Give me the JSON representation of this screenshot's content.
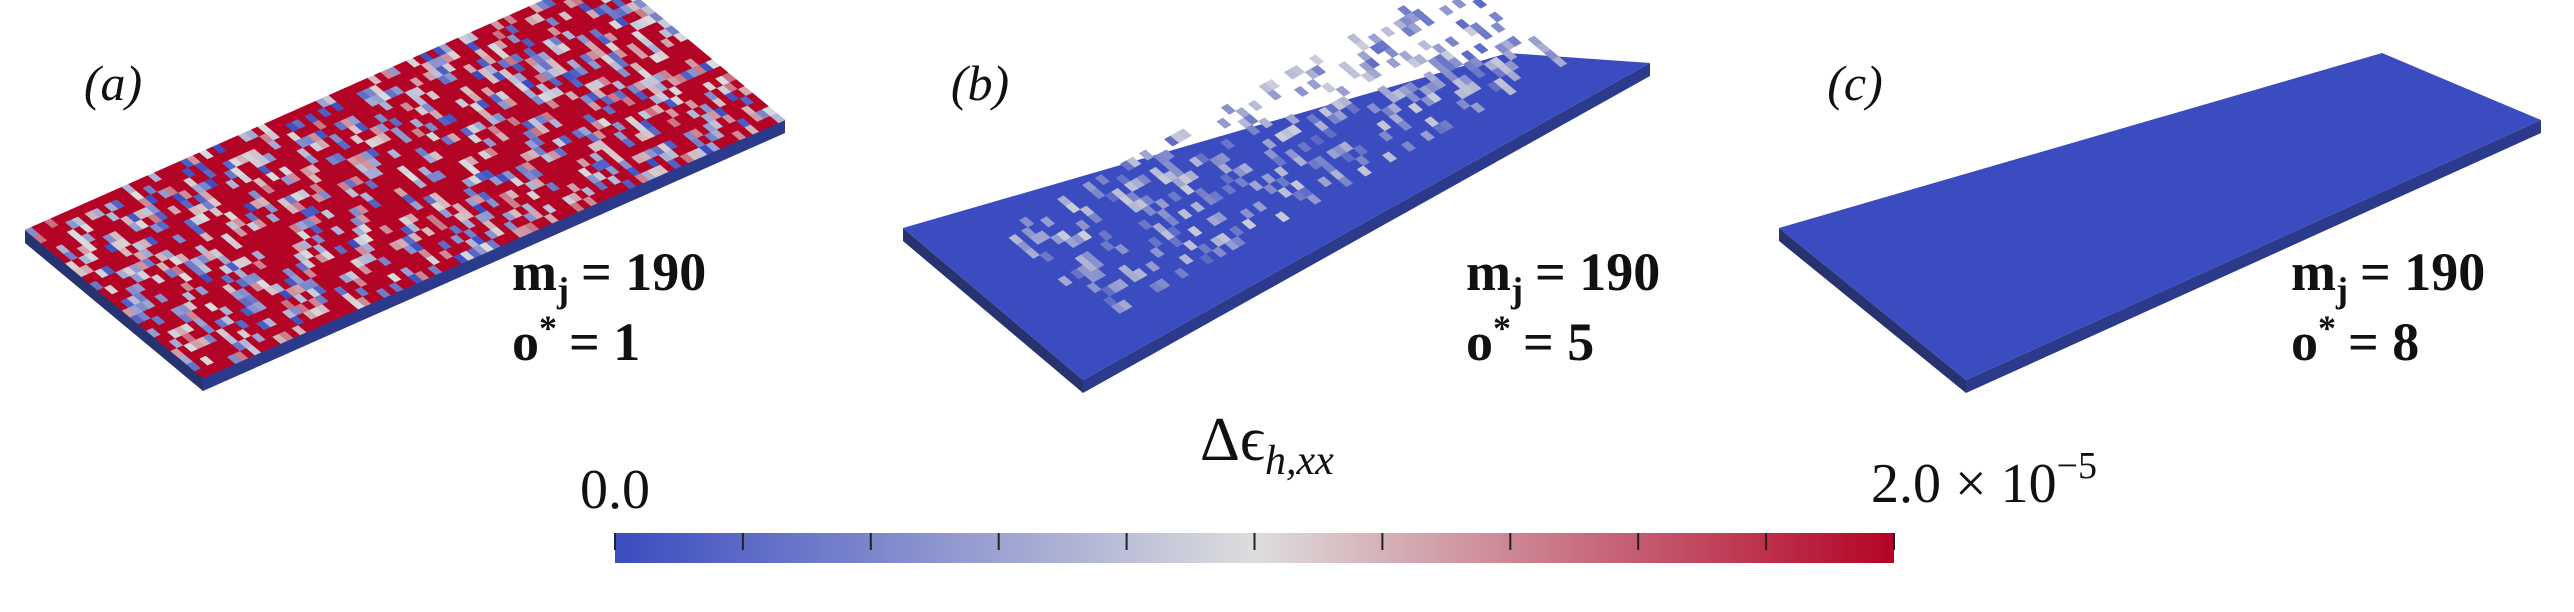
{
  "panels": [
    {
      "label": "(a)",
      "params": [
        {
          "symbol": "m",
          "subscript": "j",
          "rest": "= 190"
        },
        {
          "symbol": "o",
          "superscript": "*",
          "rest": "= 1"
        }
      ]
    },
    {
      "label": "(b)",
      "params": [
        {
          "symbol": "m",
          "subscript": "j",
          "rest": "= 190"
        },
        {
          "symbol": "o",
          "superscript": "*",
          "rest": "= 5"
        }
      ]
    },
    {
      "label": "(c)",
      "params": [
        {
          "symbol": "m",
          "subscript": "j",
          "rest": "= 190"
        },
        {
          "symbol": "o",
          "superscript": "*",
          "rest": "= 8"
        }
      ]
    }
  ],
  "colorbar": {
    "title": {
      "symbol": "Δϵ",
      "subscript": "h,xx"
    },
    "range": [
      0,
      2e-05
    ],
    "ticks": [
      0,
      2e-06,
      4e-06,
      6e-06,
      8e-06,
      1e-05,
      1.2e-05,
      1.4e-05,
      1.6e-05,
      1.8e-05,
      2e-05
    ],
    "min_label": "0.0",
    "max_label": {
      "text": "2.0 × 10",
      "superscript": "−5"
    },
    "colormap": [
      "#3b4cc0",
      "#dddddd",
      "#b40426"
    ]
  }
}
